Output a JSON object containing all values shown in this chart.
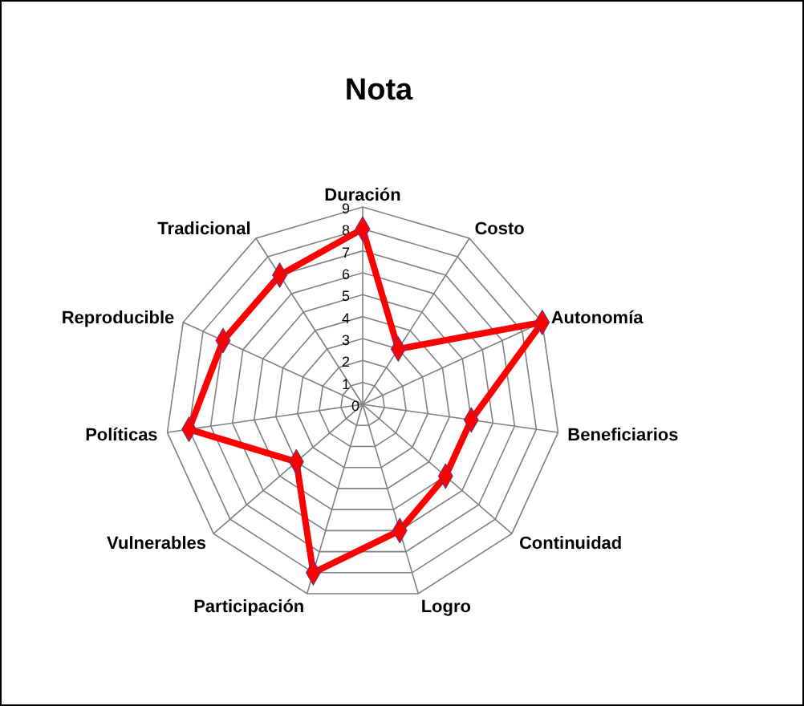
{
  "chart_data": {
    "type": "radar",
    "title": "Nota",
    "categories": [
      "Duración",
      "Costo",
      "Autonomía",
      "Beneficiarios",
      "Continuidad",
      "Logro",
      "Participación",
      "Vulnerables",
      "Políticas",
      "Reproducible",
      "Tradicional"
    ],
    "series": [
      {
        "color": "#ff0000",
        "values": [
          8,
          3,
          9,
          5,
          5,
          6,
          8,
          4,
          8,
          7,
          7
        ]
      }
    ],
    "ylim": [
      0,
      9
    ],
    "yticks": [
      0,
      1,
      2,
      3,
      4,
      5,
      6,
      7,
      8,
      9
    ],
    "grid": true,
    "marker": "diamond",
    "line_style": "solid"
  }
}
